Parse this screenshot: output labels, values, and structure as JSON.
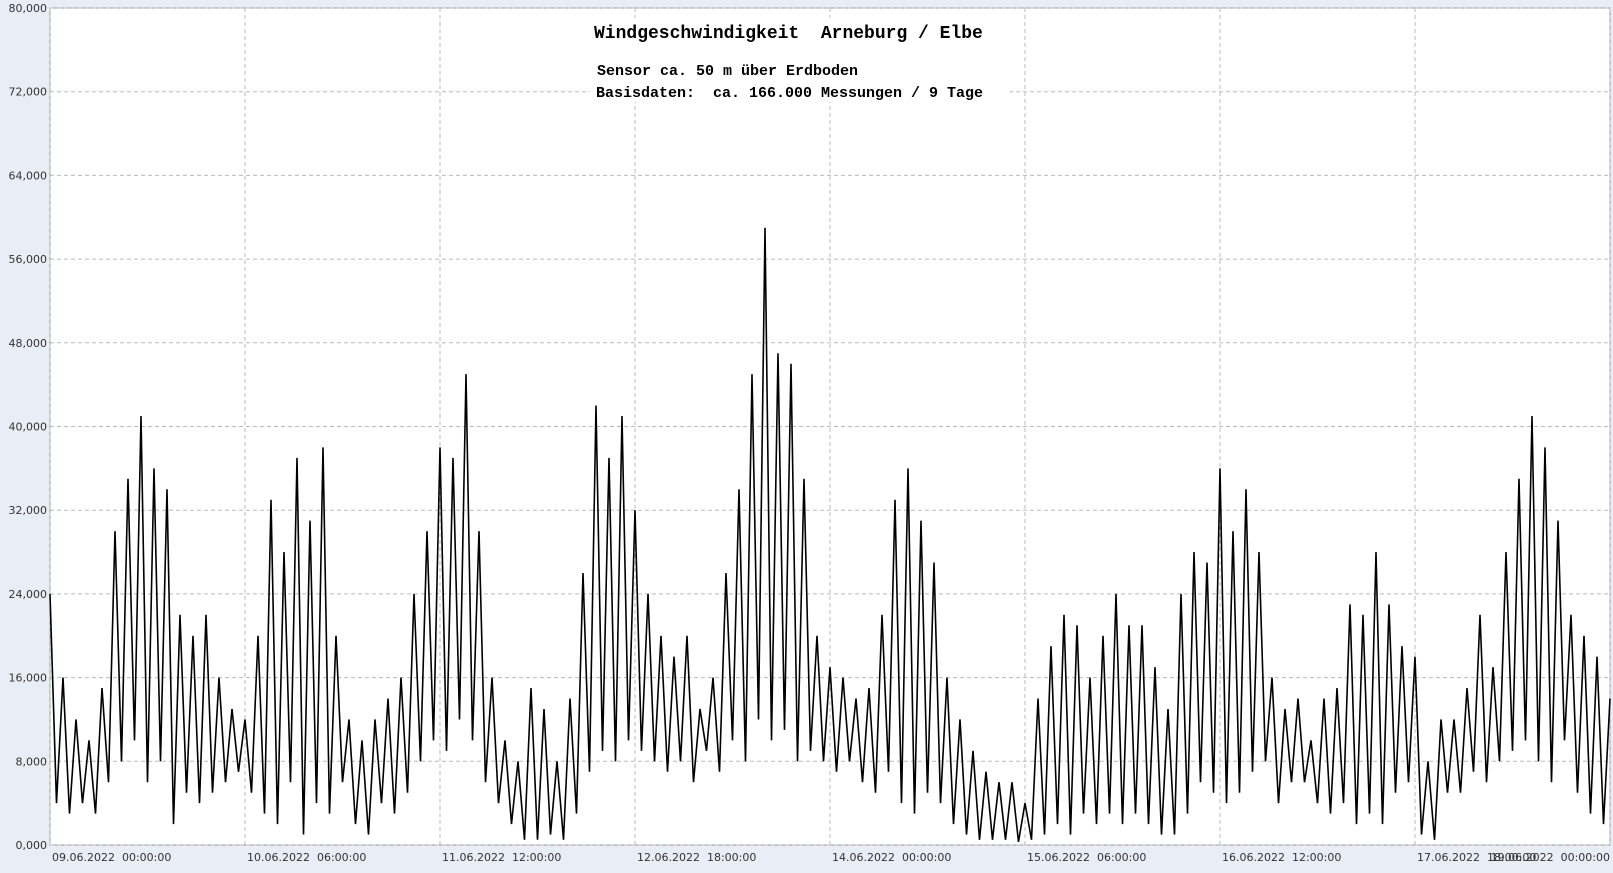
{
  "chart_data": {
    "type": "line",
    "title": "Windgeschwindigkeit  Arneburg / Elbe",
    "subtitle": [
      "Sensor ca. 50 m über Erdboden",
      "Basisdaten:  ca. 166.000 Messungen / 9 Tage"
    ],
    "color": "#000000",
    "grid": true,
    "xlim": [
      0,
      240
    ],
    "xticks": [
      {
        "value": 0,
        "label": "09.06.2022  00:00:00"
      },
      {
        "value": 30,
        "label": "10.06.2022  06:00:00"
      },
      {
        "value": 60,
        "label": "11.06.2022  12:00:00"
      },
      {
        "value": 90,
        "label": "12.06.2022  18:00:00"
      },
      {
        "value": 120,
        "label": "14.06.2022  00:00:00"
      },
      {
        "value": 150,
        "label": "15.06.2022  06:00:00"
      },
      {
        "value": 180,
        "label": "16.06.2022  12:00:00"
      },
      {
        "value": 210,
        "label": "17.06.2022  18:00:00"
      },
      {
        "value": 240,
        "label": "19.06.2022  00:00:00"
      }
    ],
    "ylim": [
      0,
      80
    ],
    "yticks": [
      {
        "value": 0,
        "label": "0,000"
      },
      {
        "value": 8,
        "label": "8,000"
      },
      {
        "value": 16,
        "label": "16,000"
      },
      {
        "value": 24,
        "label": "24,000"
      },
      {
        "value": 32,
        "label": "32,000"
      },
      {
        "value": 40,
        "label": "40,000"
      },
      {
        "value": 48,
        "label": "48,000"
      },
      {
        "value": 56,
        "label": "56,000"
      },
      {
        "value": 64,
        "label": "64,000"
      },
      {
        "value": 72,
        "label": "72,000"
      },
      {
        "value": 80,
        "label": "80,000"
      }
    ],
    "values": [
      24,
      4,
      16,
      3,
      12,
      4,
      10,
      3,
      15,
      6,
      30,
      8,
      35,
      10,
      41,
      6,
      36,
      8,
      34,
      2,
      22,
      5,
      20,
      4,
      22,
      5,
      16,
      6,
      13,
      7,
      12,
      5,
      20,
      3,
      33,
      2,
      28,
      6,
      37,
      1,
      31,
      4,
      38,
      3,
      20,
      6,
      12,
      2,
      10,
      1,
      12,
      4,
      14,
      3,
      16,
      5,
      24,
      8,
      30,
      10,
      38,
      9,
      37,
      12,
      45,
      10,
      30,
      6,
      16,
      4,
      10,
      2,
      8,
      0.5,
      15,
      0.5,
      13,
      1,
      8,
      0.5,
      14,
      3,
      26,
      7,
      42,
      9,
      37,
      8,
      41,
      10,
      32,
      9,
      24,
      8,
      20,
      7,
      18,
      8,
      20,
      6,
      13,
      9,
      16,
      7,
      26,
      10,
      34,
      8,
      45,
      12,
      59,
      10,
      47,
      11,
      46,
      8,
      35,
      9,
      20,
      8,
      17,
      7,
      16,
      8,
      14,
      6,
      15,
      5,
      22,
      7,
      33,
      4,
      36,
      3,
      31,
      5,
      27,
      4,
      16,
      2,
      12,
      1,
      9,
      0.5,
      7,
      0.5,
      6,
      0.5,
      6,
      0.3,
      4,
      0.5,
      14,
      1,
      19,
      2,
      22,
      1,
      21,
      3,
      16,
      2,
      20,
      3,
      24,
      2,
      21,
      3,
      21,
      2,
      17,
      1,
      13,
      1,
      24,
      3,
      28,
      6,
      27,
      5,
      36,
      4,
      30,
      5,
      34,
      7,
      28,
      8,
      16,
      4,
      13,
      6,
      14,
      6,
      10,
      4,
      14,
      3,
      15,
      4,
      23,
      2,
      22,
      3,
      28,
      2,
      23,
      5,
      19,
      6,
      18,
      1,
      8,
      0.5,
      12,
      5,
      12,
      5,
      15,
      7,
      22,
      6,
      17,
      8,
      28,
      9,
      35,
      10,
      41,
      8,
      38,
      6,
      31,
      10,
      22,
      5,
      20,
      3,
      18,
      2,
      14
    ]
  }
}
